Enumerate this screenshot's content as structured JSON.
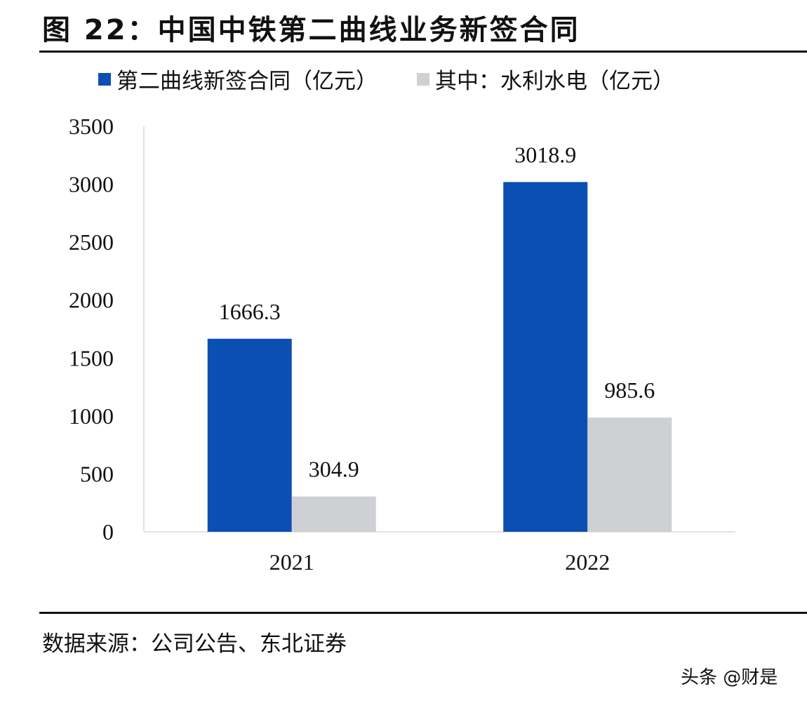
{
  "title": "图 22：中国中铁第二曲线业务新签合同",
  "source": "数据来源：公司公告、东北证券",
  "watermark": "头条 @财是",
  "chart_data": {
    "type": "bar",
    "title": "图 22：中国中铁第二曲线业务新签合同",
    "categories": [
      "2021",
      "2022"
    ],
    "series": [
      {
        "name": "第二曲线新签合同（亿元）",
        "color": "#0b4fb3",
        "values": [
          1666.3,
          3018.9
        ]
      },
      {
        "name": "其中：水利水电（亿元）",
        "color": "#cfd0d3",
        "values": [
          304.9,
          985.6
        ]
      }
    ],
    "ylim": [
      0,
      3500
    ],
    "yticks": [
      0,
      500,
      1000,
      1500,
      2000,
      2500,
      3000,
      3500
    ],
    "grid": false,
    "legend": "top",
    "xlabel": "",
    "ylabel": ""
  }
}
